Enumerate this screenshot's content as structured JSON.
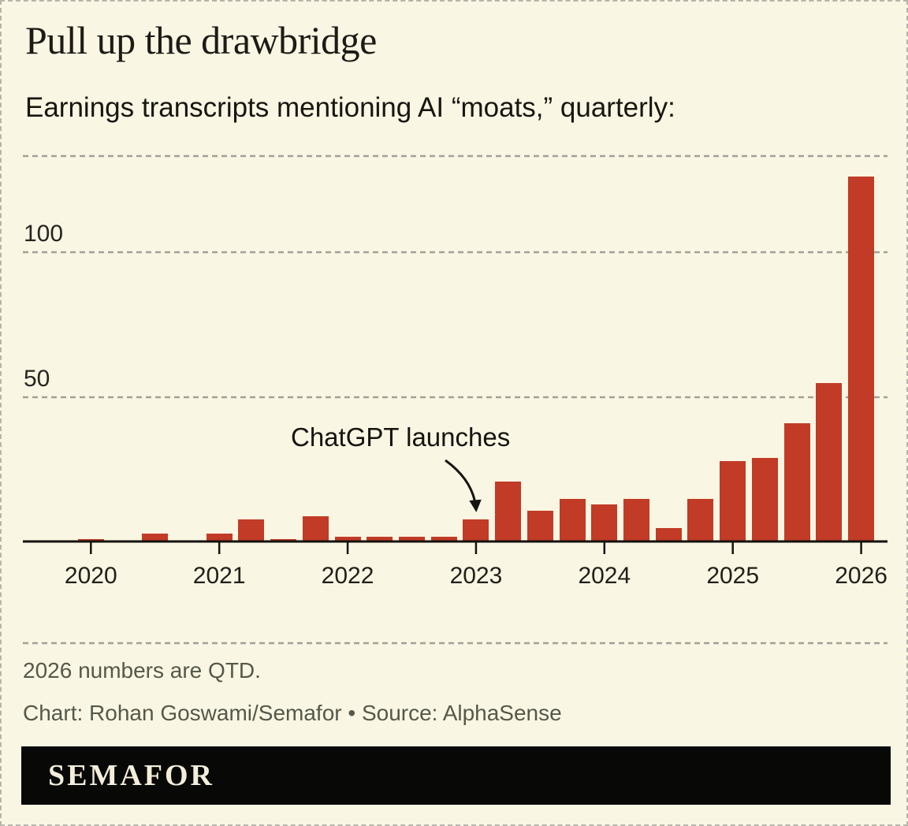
{
  "header": {
    "title": "Pull up the drawbridge",
    "subtitle": "Earnings transcripts mentioning AI “moats,” quarterly:"
  },
  "chart_data": {
    "type": "bar",
    "title": "Pull up the drawbridge",
    "subtitle": "Earnings transcripts mentioning AI “moats,” quarterly:",
    "x": [
      "2020 Q1",
      "2020 Q2",
      "2020 Q3",
      "2020 Q4",
      "2021 Q1",
      "2021 Q2",
      "2021 Q3",
      "2021 Q4",
      "2022 Q1",
      "2022 Q2",
      "2022 Q3",
      "2022 Q4",
      "2023 Q1",
      "2023 Q2",
      "2023 Q3",
      "2023 Q4",
      "2024 Q1",
      "2024 Q2",
      "2024 Q3",
      "2024 Q4",
      "2025 Q1",
      "2025 Q2",
      "2025 Q3",
      "2025 Q4",
      "2026 Q1"
    ],
    "values": [
      1,
      0,
      3,
      0,
      3,
      8,
      1,
      9,
      2,
      2,
      2,
      2,
      8,
      21,
      11,
      15,
      13,
      15,
      5,
      15,
      28,
      29,
      41,
      55,
      126
    ],
    "x_tick_labels": [
      "2020",
      "2021",
      "2022",
      "2023",
      "2024",
      "2025",
      "2026"
    ],
    "gridline_values": [
      50,
      100
    ],
    "ylim": [
      0,
      133
    ],
    "grid": "dashed",
    "legend": "none",
    "bar_color": "#c13b27",
    "annotation": {
      "text": "ChatGPT launches",
      "points_to": "2023 Q1"
    }
  },
  "footer": {
    "note": "2026 numbers are QTD.",
    "credit": "Chart: Rohan Goswami/Semafor • Source: AlphaSense"
  },
  "logo": {
    "text": "SEMAFOR"
  }
}
